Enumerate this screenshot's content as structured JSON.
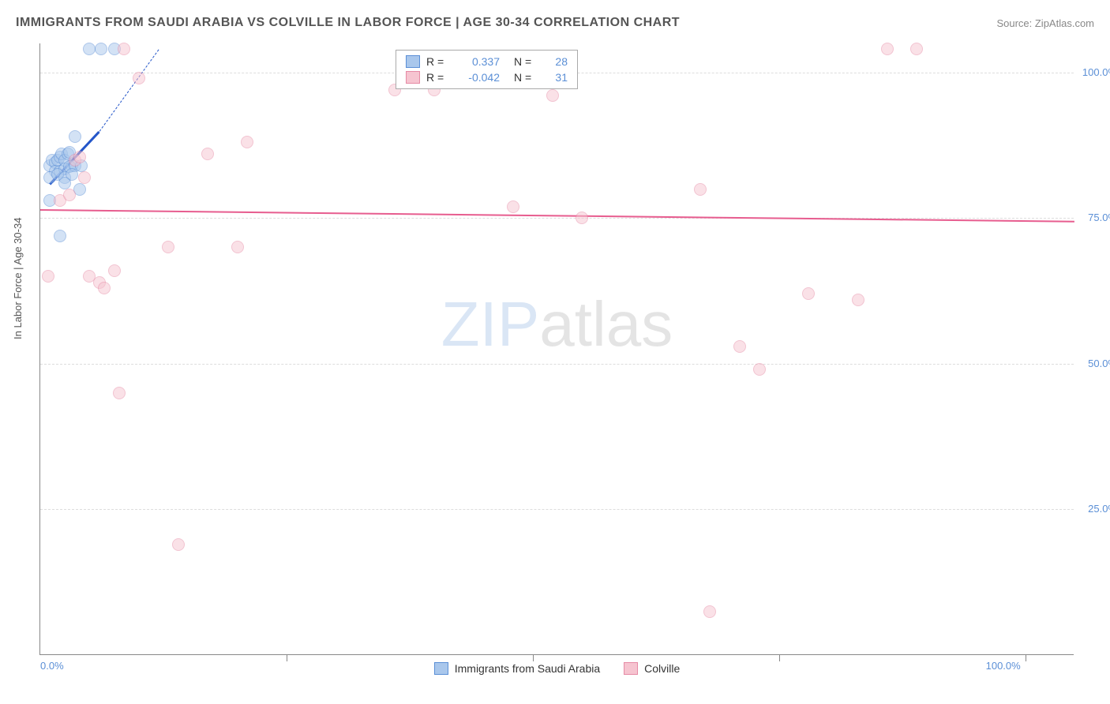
{
  "header": {
    "title": "IMMIGRANTS FROM SAUDI ARABIA VS COLVILLE IN LABOR FORCE | AGE 30-34 CORRELATION CHART",
    "source": "Source: ZipAtlas.com"
  },
  "watermark": {
    "zip": "ZIP",
    "atlas": "atlas"
  },
  "chart": {
    "type": "scatter",
    "ylabel": "In Labor Force | Age 30-34",
    "xlim": [
      0,
      105
    ],
    "ylim": [
      0,
      105
    ],
    "yticks": [
      {
        "v": 25,
        "label": "25.0%"
      },
      {
        "v": 50,
        "label": "50.0%"
      },
      {
        "v": 75,
        "label": "75.0%"
      },
      {
        "v": 100,
        "label": "100.0%"
      }
    ],
    "xticks": [
      {
        "v": 0,
        "label": "0.0%"
      },
      {
        "v": 100,
        "label": "100.0%"
      }
    ],
    "xminor": [
      25,
      50,
      75,
      100
    ],
    "background_color": "#ffffff",
    "grid_color": "#dddddd",
    "marker_radius": 8,
    "marker_opacity": 0.5,
    "series": [
      {
        "name": "Immigrants from Saudi Arabia",
        "color_fill": "#a9c7ec",
        "color_stroke": "#5b8fd6",
        "r": 0.337,
        "n": 28,
        "trend": {
          "x1": 1,
          "y1": 81,
          "x2": 6,
          "y2": 90,
          "color": "#2456c9",
          "width": 2.5
        },
        "ext": {
          "x1": 6,
          "y1": 90,
          "x2": 12,
          "y2": 104,
          "color": "#2456c9",
          "width": 1,
          "dashed": true
        },
        "points": [
          [
            1,
            84
          ],
          [
            1.2,
            85
          ],
          [
            1.5,
            84.5
          ],
          [
            1.8,
            85
          ],
          [
            2,
            85.5
          ],
          [
            2.2,
            86
          ],
          [
            2.5,
            85
          ],
          [
            2.8,
            86
          ],
          [
            3,
            86.3
          ],
          [
            3.2,
            84
          ],
          [
            1.5,
            83
          ],
          [
            2,
            83
          ],
          [
            2.5,
            83.5
          ],
          [
            3,
            83.8
          ],
          [
            3.5,
            84
          ],
          [
            1,
            82
          ],
          [
            1.8,
            82.5
          ],
          [
            2.5,
            82
          ],
          [
            3.2,
            82.5
          ],
          [
            1,
            78
          ],
          [
            2,
            72
          ],
          [
            4,
            80
          ],
          [
            3.5,
            89
          ],
          [
            4.2,
            84
          ],
          [
            5,
            104
          ],
          [
            6.2,
            104
          ],
          [
            7.5,
            104
          ],
          [
            2.5,
            81
          ]
        ]
      },
      {
        "name": "Colville",
        "color_fill": "#f6c4d0",
        "color_stroke": "#e68aa5",
        "r": -0.042,
        "n": 31,
        "trend": {
          "x1": 0,
          "y1": 76.5,
          "x2": 105,
          "y2": 74.5,
          "color": "#e75d8f",
          "width": 2
        },
        "points": [
          [
            0.8,
            65
          ],
          [
            2,
            78
          ],
          [
            3,
            79
          ],
          [
            3.5,
            85
          ],
          [
            4,
            85.5
          ],
          [
            4.5,
            82
          ],
          [
            5,
            65
          ],
          [
            6,
            64
          ],
          [
            6.5,
            63
          ],
          [
            7.5,
            66
          ],
          [
            8.5,
            104
          ],
          [
            8,
            45
          ],
          [
            10,
            99
          ],
          [
            13,
            70
          ],
          [
            14,
            19
          ],
          [
            17,
            86
          ],
          [
            20,
            70
          ],
          [
            21,
            88
          ],
          [
            36,
            97
          ],
          [
            40,
            97
          ],
          [
            48,
            77
          ],
          [
            52,
            96
          ],
          [
            55,
            75
          ],
          [
            67,
            80
          ],
          [
            68,
            7.5
          ],
          [
            73,
            49
          ],
          [
            78,
            62
          ],
          [
            83,
            61
          ],
          [
            86,
            104
          ],
          [
            89,
            104
          ],
          [
            71,
            53
          ]
        ]
      }
    ]
  },
  "legend_top": [
    {
      "swatch_fill": "#a9c7ec",
      "swatch_stroke": "#5b8fd6",
      "r": "0.337",
      "n": "28"
    },
    {
      "swatch_fill": "#f6c4d0",
      "swatch_stroke": "#e68aa5",
      "r": "-0.042",
      "n": "31"
    }
  ],
  "legend_bottom": [
    {
      "swatch_fill": "#a9c7ec",
      "swatch_stroke": "#5b8fd6",
      "label": "Immigrants from Saudi Arabia"
    },
    {
      "swatch_fill": "#f6c4d0",
      "swatch_stroke": "#e68aa5",
      "label": "Colville"
    }
  ]
}
